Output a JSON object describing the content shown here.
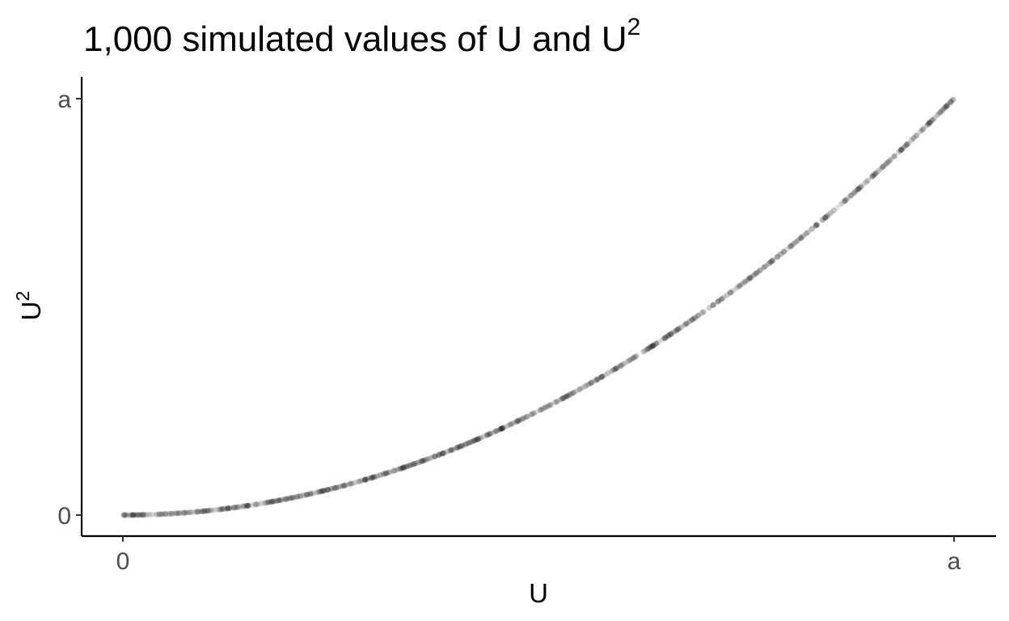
{
  "chart_data": {
    "type": "scatter",
    "title": "1,000 simulated values of U and U",
    "title_superscript": "2",
    "xlabel": "U",
    "ylabel": "U",
    "ylabel_superscript": "2",
    "x_ticks": [
      "0",
      "a"
    ],
    "y_ticks": [
      "0",
      "a"
    ],
    "xlim": [
      0,
      1
    ],
    "ylim": [
      0,
      1
    ],
    "n_points": 1000,
    "relationship": "y = x^2",
    "point_color": "#000000",
    "point_alpha": 0.1,
    "grid": false,
    "legend": "none"
  }
}
